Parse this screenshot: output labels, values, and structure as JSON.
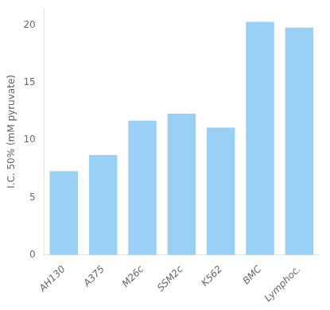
{
  "chart_data": {
    "type": "bar",
    "ylabel": "I.C. 50% (mM pyruvate)",
    "categories": [
      "AH130",
      "A375",
      "M26c",
      "SSM2c",
      "K562",
      "BMC",
      "Lymphoc."
    ],
    "values": [
      7.3,
      8.7,
      11.7,
      12.3,
      11.1,
      20.3,
      19.8
    ],
    "ylim": [
      0,
      21.5
    ],
    "yticks": [
      0,
      5,
      10,
      15,
      20
    ],
    "grid": false
  }
}
